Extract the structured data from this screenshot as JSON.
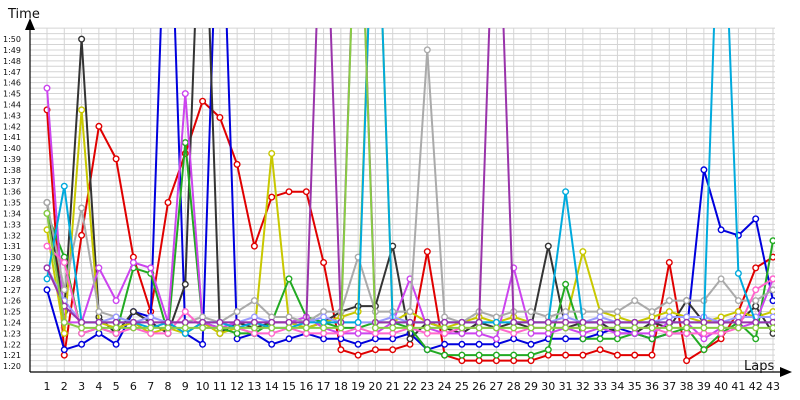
{
  "chart_data": {
    "type": "line",
    "ylabel": "Time",
    "xlabel": "Laps",
    "x": [
      1,
      2,
      3,
      4,
      5,
      6,
      7,
      8,
      9,
      10,
      11,
      12,
      13,
      14,
      15,
      16,
      17,
      18,
      19,
      20,
      21,
      22,
      23,
      24,
      25,
      26,
      27,
      28,
      29,
      30,
      31,
      32,
      33,
      34,
      35,
      36,
      37,
      38,
      39,
      40,
      41,
      42,
      43
    ],
    "xticks": [
      "1",
      "2",
      "3",
      "4",
      "5",
      "6",
      "7",
      "8",
      "9",
      "10",
      "11",
      "12",
      "13",
      "14",
      "15",
      "16",
      "17",
      "18",
      "19",
      "20",
      "21",
      "22",
      "23",
      "24",
      "25",
      "26",
      "27",
      "28",
      "29",
      "30",
      "31",
      "32",
      "33",
      "34",
      "35",
      "36",
      "37",
      "38",
      "39",
      "40",
      "41",
      "42",
      "43"
    ],
    "yticks": [
      "1:20",
      "1:21",
      "1:22",
      "1:23",
      "1:24",
      "1:25",
      "1:26",
      "1:27",
      "1:28",
      "1:29",
      "1:30",
      "1:31",
      "1:32",
      "1:33",
      "1:34",
      "1:35",
      "1:36",
      "1:37",
      "1:38",
      "1:39",
      "1:40",
      "1:41",
      "1:42",
      "1:43",
      "1:44",
      "1:45",
      "1:46",
      "1:47",
      "1:48",
      "1:49",
      "1:50"
    ],
    "y_units": "seconds",
    "ylim": [
      79.5,
      115
    ],
    "grid": true,
    "legend": "none",
    "series": [
      {
        "color": "#e00000",
        "values": [
          103.5,
          81,
          92,
          102,
          99,
          90,
          85,
          95,
          99.5,
          104.3,
          102.8,
          98.5,
          91,
          95.5,
          96,
          96,
          89.5,
          81.5,
          81,
          81.5,
          81.5,
          82,
          90.5,
          81,
          80.5,
          80.5,
          80.5,
          80.5,
          80.5,
          81,
          81,
          81,
          81.5,
          81,
          81,
          81,
          89.5,
          80.5,
          81.5,
          82.5,
          85,
          89,
          90
        ]
      },
      {
        "color": "#0000dd",
        "values": [
          87,
          81.5,
          82,
          83,
          82,
          85,
          84.5,
          130,
          83,
          82,
          130,
          82.5,
          83,
          82,
          82.5,
          83,
          82.5,
          82.5,
          82,
          82.5,
          82.5,
          83,
          81.5,
          82,
          82,
          82,
          82,
          82.5,
          82,
          82.5,
          82.5,
          82.5,
          83,
          83.5,
          83,
          82.5,
          83,
          83,
          98,
          92.5,
          92,
          93.5,
          86
        ]
      },
      {
        "color": "#333333",
        "values": [
          95,
          85,
          110,
          84.5,
          83,
          85,
          84,
          83,
          87.5,
          130,
          83,
          84,
          83.5,
          84,
          84,
          83.5,
          84,
          85,
          85.5,
          85.5,
          91,
          82.5,
          84,
          83.5,
          83,
          84,
          83.5,
          84,
          83.5,
          91,
          83.5,
          84,
          84,
          83,
          83,
          84,
          83.5,
          86,
          84,
          84,
          84,
          85.5,
          83
        ]
      },
      {
        "color": "#c8c800",
        "values": [
          92.5,
          83,
          103.5,
          84,
          83.5,
          84,
          83,
          83.5,
          83,
          84,
          83,
          83.5,
          83,
          99.5,
          84,
          83.5,
          84,
          84.5,
          85,
          130,
          84,
          85,
          84,
          83.5,
          84,
          84.5,
          84,
          84.5,
          84,
          84,
          84,
          90.5,
          85,
          84.5,
          84,
          84.5,
          85,
          84.5,
          84,
          84.5,
          85,
          84.5,
          85
        ]
      },
      {
        "color": "#22aa22",
        "values": [
          94,
          90,
          83,
          83.5,
          83,
          89,
          88.5,
          83,
          100.5,
          84,
          83.5,
          83,
          83,
          84,
          88,
          84.5,
          84,
          83.5,
          83.5,
          84,
          84,
          83.5,
          81.5,
          81,
          81,
          81,
          81,
          81,
          81,
          81.5,
          87.5,
          82.5,
          82.5,
          82.5,
          83,
          82.5,
          83,
          83.5,
          81.5,
          83,
          84,
          82.5,
          91.5
        ]
      },
      {
        "color": "#cc44ee",
        "values": [
          105.5,
          84,
          84,
          89,
          86,
          89.5,
          89,
          84,
          105,
          84,
          83.5,
          84,
          84,
          84,
          84,
          84.5,
          83.5,
          83,
          83,
          83,
          84,
          88,
          83.5,
          83,
          83,
          83,
          82.5,
          89,
          83,
          83,
          83.5,
          83,
          83.5,
          83,
          83,
          83,
          84,
          84,
          82.5,
          83.5,
          83.5,
          84,
          88
        ]
      },
      {
        "color": "#aaaaaa",
        "values": [
          95,
          87,
          94.5,
          85,
          84.5,
          84,
          84,
          84,
          84,
          84.5,
          84,
          85,
          86,
          84.5,
          84.5,
          84,
          85,
          85,
          90,
          85,
          85,
          85,
          109,
          84.5,
          84,
          85,
          84.5,
          85,
          85,
          84.5,
          85,
          85,
          85,
          85,
          86,
          85,
          86,
          86,
          86,
          88,
          86,
          86,
          87
        ]
      },
      {
        "color": "#9999ff",
        "values": [
          89,
          86,
          84,
          84,
          84.5,
          84,
          84.5,
          84,
          84,
          84,
          84,
          84,
          84.5,
          84,
          84,
          84,
          84.5,
          84,
          84,
          84,
          84.5,
          84,
          84,
          84,
          84,
          84,
          84,
          84,
          84,
          84,
          84.5,
          84,
          84.5,
          84,
          84,
          84,
          84.5,
          84.5,
          84.5,
          84,
          84.5,
          84.5,
          84.5
        ]
      },
      {
        "color": "#ff66cc",
        "values": [
          91,
          89.5,
          83,
          83.5,
          83,
          83.5,
          83,
          83,
          85,
          83.5,
          83.5,
          83.5,
          83,
          83,
          83.5,
          83,
          83,
          83,
          83.5,
          83,
          83,
          83.5,
          83,
          83,
          83.5,
          83.5,
          83.5,
          83,
          83.5,
          83.5,
          83.5,
          83.5,
          83.5,
          83.5,
          83.5,
          83.5,
          83,
          83,
          83,
          83,
          83.5,
          87,
          88
        ]
      },
      {
        "color": "#00aadd",
        "values": [
          88,
          96.5,
          84,
          84,
          84,
          84,
          83.5,
          84,
          83,
          84,
          84,
          83.5,
          84,
          83.5,
          83.5,
          84,
          84,
          84,
          84,
          130,
          84,
          84,
          84,
          84,
          84,
          84,
          84,
          84,
          84,
          84,
          96,
          84,
          84,
          84,
          84,
          84,
          84,
          84,
          84,
          130,
          88.5,
          84,
          84
        ]
      },
      {
        "color": "#9933aa",
        "values": [
          89,
          85.5,
          84,
          84,
          84,
          84,
          84,
          84,
          84,
          84,
          84,
          84,
          84,
          84,
          84,
          84,
          130,
          84,
          130,
          84,
          84,
          84,
          84,
          84,
          84,
          84,
          130,
          84,
          84,
          84,
          84,
          84,
          84,
          84,
          84,
          84,
          84,
          84,
          84,
          84,
          84,
          84,
          84
        ]
      },
      {
        "color": "#88cc44",
        "values": [
          94,
          84,
          83.5,
          83.5,
          83.5,
          83.5,
          83.5,
          83.5,
          83.5,
          83.5,
          83.5,
          83.5,
          83.5,
          83.5,
          83.5,
          83.5,
          83.5,
          83.5,
          130,
          83.5,
          83.5,
          83.5,
          83.5,
          83.5,
          83.5,
          83.5,
          83.5,
          83.5,
          83.5,
          83.5,
          83.5,
          83.5,
          83.5,
          83.5,
          83.5,
          83.5,
          83.5,
          83.5,
          83.5,
          83.5,
          83.5,
          83.5,
          83.5
        ]
      }
    ]
  }
}
